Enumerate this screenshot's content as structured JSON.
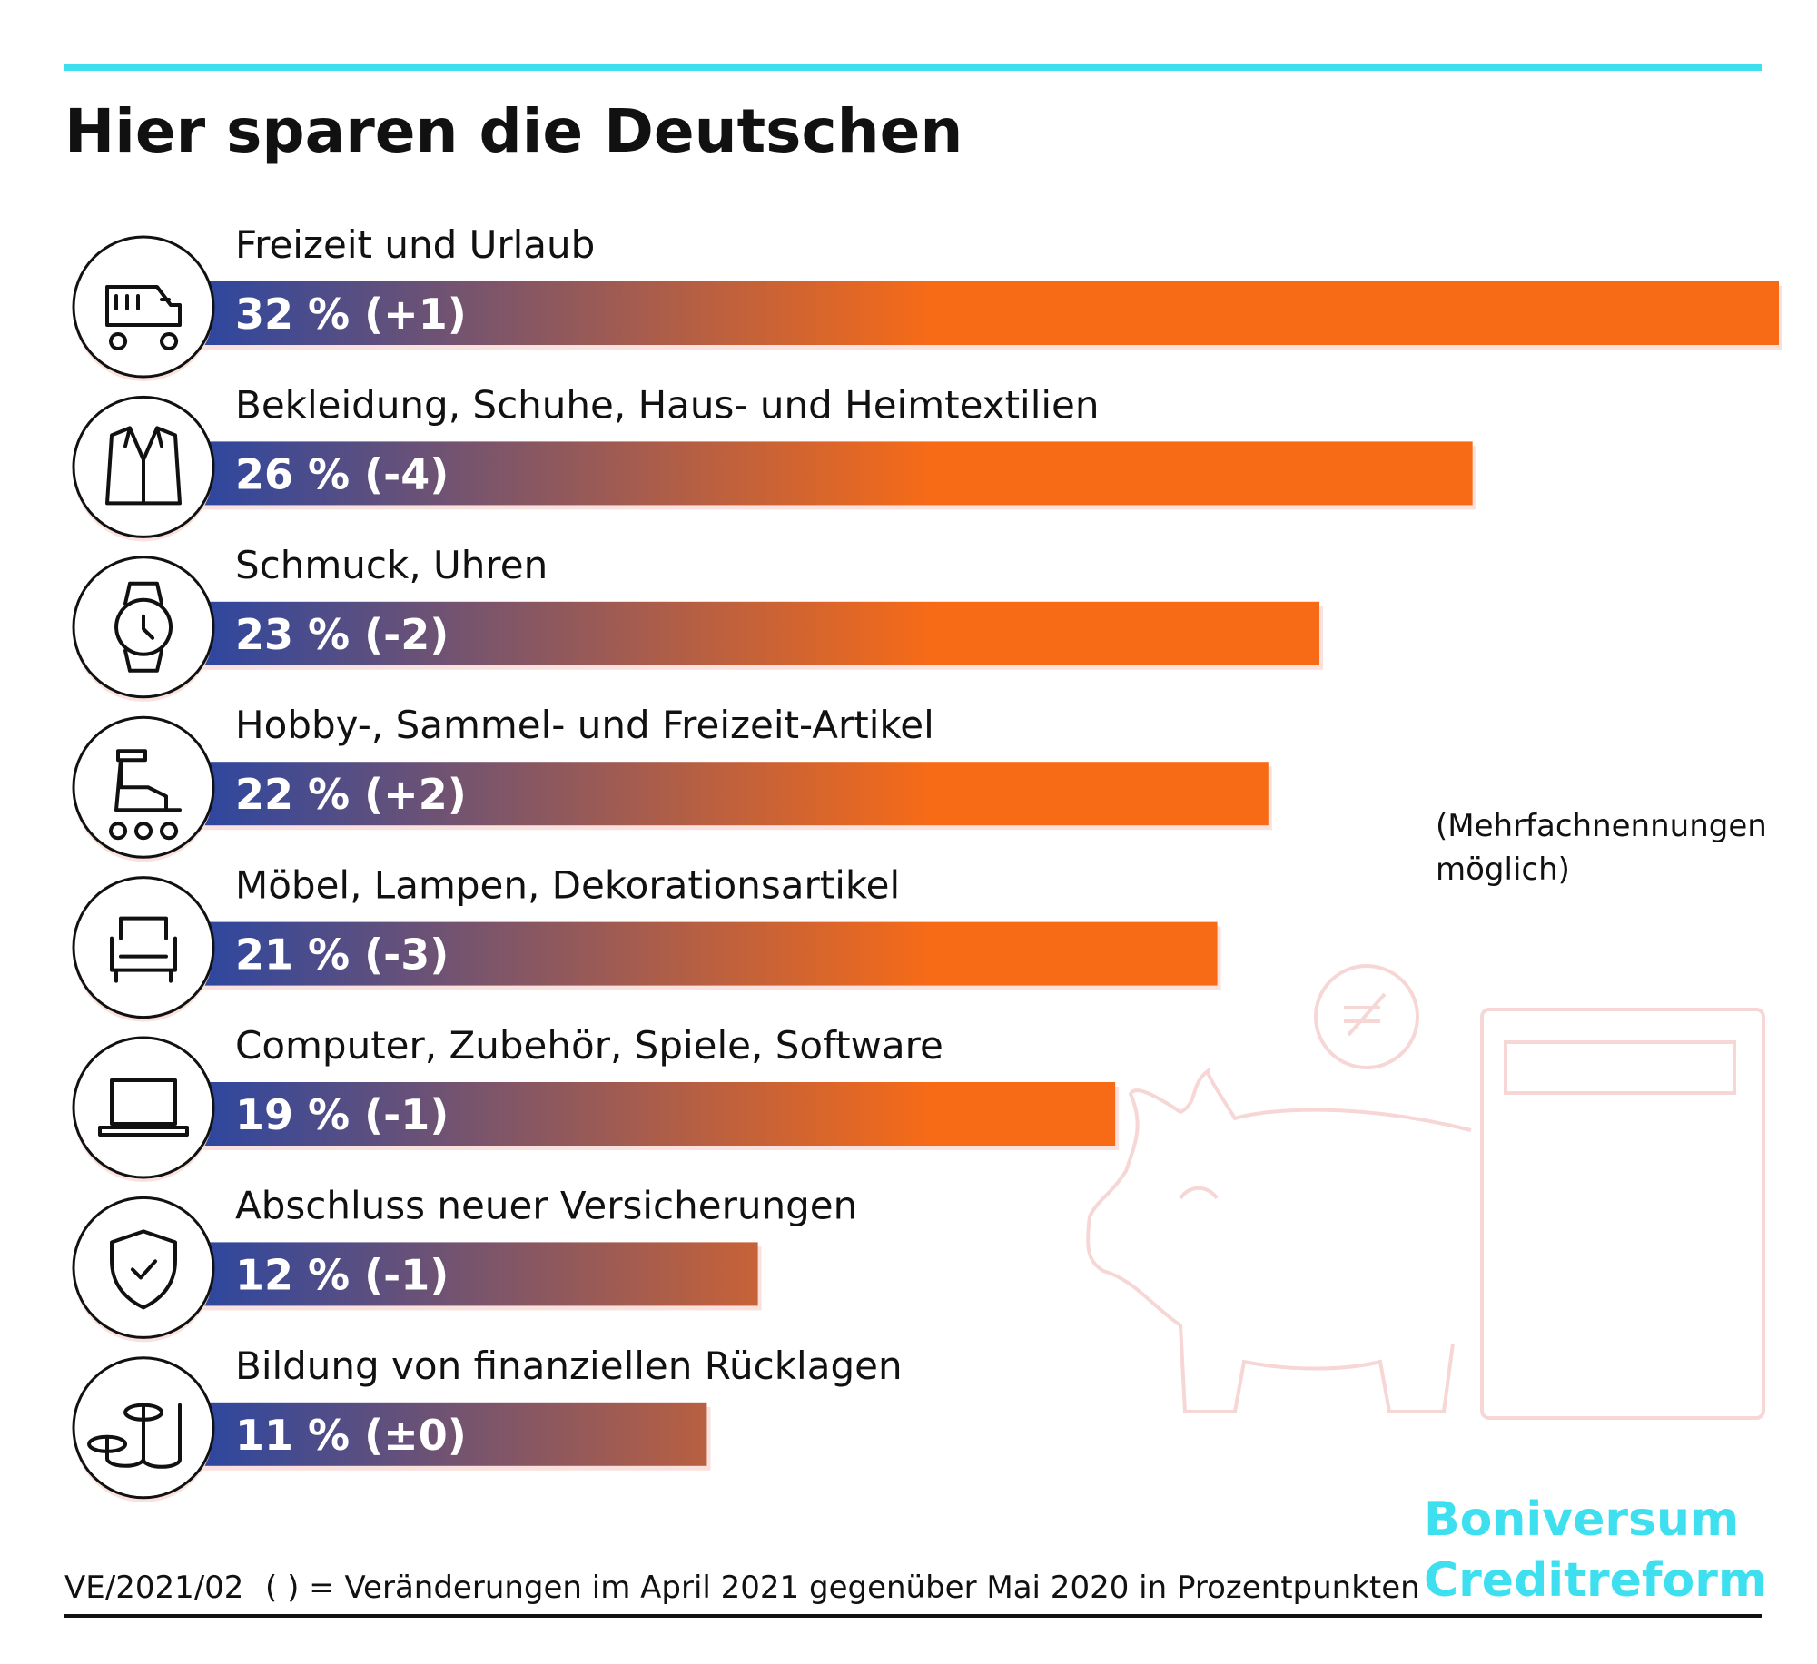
{
  "chart_data": {
    "type": "bar",
    "orientation": "horizontal",
    "title": "Hier sparen die Deutschen",
    "categories": [
      "Freizeit und Urlaub",
      "Bekleidung, Schuhe, Haus- und Heimtextilien",
      "Schmuck, Uhren",
      "Hobby-, Sammel- und Freizeit-Artikel",
      "Möbel, Lampen, Dekorationsartikel",
      "Computer, Zubehör, Spiele, Software",
      "Abschluss neuer Versicherungen",
      "Bildung von finanziellen Rücklagen"
    ],
    "values": [
      32,
      26,
      23,
      22,
      21,
      19,
      12,
      11
    ],
    "value_labels": [
      "32 % (+1)",
      "26 % (-4)",
      "23 % (-2)",
      "22 % (+2)",
      "21 % (-3)",
      "19 % (-1)",
      "12 % (-1)",
      "11 % (±0)"
    ],
    "color": "#f86b16",
    "gradient_start": "#2f479e",
    "note": [
      "(Mehrfachnennungen",
      "möglich)"
    ],
    "source_code": "VE/2021/02",
    "footnote": "( ) =  Veränderungen im April 2021 gegenüber Mai 2020 in Prozentpunkten",
    "brand": [
      "Boniversum",
      "Creditreform"
    ]
  }
}
